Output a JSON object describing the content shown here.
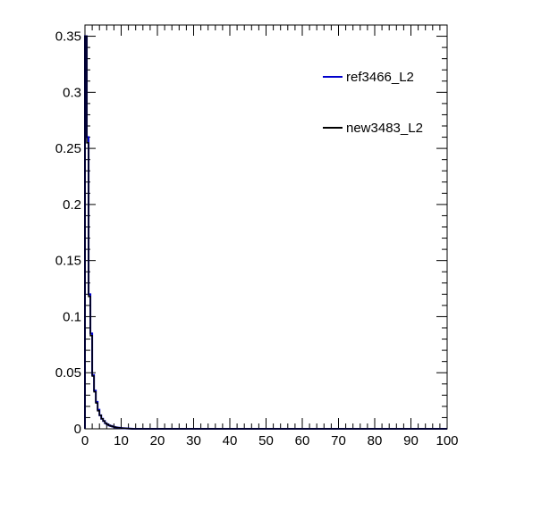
{
  "chart_data": {
    "type": "line",
    "title": "",
    "xlabel": "",
    "ylabel": "",
    "xlim": [
      0,
      100
    ],
    "ylim": [
      0,
      0.36
    ],
    "x_ticks": [
      0,
      10,
      20,
      30,
      40,
      50,
      60,
      70,
      80,
      90,
      100
    ],
    "x_tick_labels": [
      "0",
      "10",
      "20",
      "30",
      "40",
      "50",
      "60",
      "70",
      "80",
      "90",
      "100"
    ],
    "y_ticks": [
      0,
      0.05,
      0.1,
      0.15,
      0.2,
      0.25,
      0.3,
      0.35
    ],
    "y_tick_labels": [
      "0",
      "0.05",
      "0.1",
      "0.15",
      "0.2",
      "0.25",
      "0.3",
      "0.35"
    ],
    "grid": false,
    "legend_position": "top-right",
    "bin_edges": [
      0,
      0.5,
      1,
      1.5,
      2,
      2.5,
      3,
      3.5,
      4,
      4.5,
      5,
      5.5,
      6,
      6.5,
      7,
      7.5,
      8,
      8.5,
      9,
      9.5,
      10,
      10.5,
      11,
      11.5,
      12,
      12.5,
      13
    ],
    "series": [
      {
        "name": "ref3466_L2",
        "color": "#0000cc",
        "values": [
          0.35,
          0.26,
          0.12,
          0.085,
          0.048,
          0.034,
          0.024,
          0.017,
          0.012,
          0.009,
          0.007,
          0.005,
          0.004,
          0.003,
          0.0025,
          0.002,
          0.0015,
          0.0012,
          0.001,
          0.0008,
          0.0006,
          0.0005,
          0.0004,
          0.0003,
          0.0002,
          0.0001
        ]
      },
      {
        "name": "new3483_L2",
        "color": "#000000",
        "values": [
          0.35,
          0.255,
          0.118,
          0.083,
          0.047,
          0.033,
          0.023,
          0.016,
          0.012,
          0.009,
          0.007,
          0.005,
          0.004,
          0.003,
          0.0025,
          0.002,
          0.0015,
          0.0012,
          0.001,
          0.0008,
          0.0006,
          0.0005,
          0.0004,
          0.0003,
          0.0002,
          0.0001
        ]
      }
    ]
  }
}
